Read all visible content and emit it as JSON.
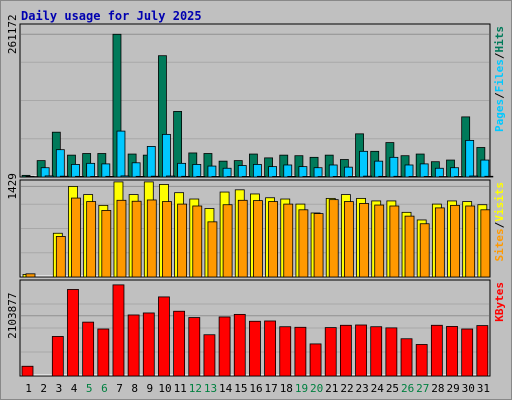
{
  "title": "Daily usage for July 2025",
  "colors": {
    "background": "#c0c0c0",
    "panel_bg": "#c0c0c0",
    "hits": "#007a5a",
    "files": "#00c8ff",
    "pages": "#00c8ff",
    "visits": "#ffff00",
    "sites": "#ff9900",
    "kbytes": "#ff0000",
    "weekend_label": "#008040",
    "axis_text": "#000000",
    "title": "#0000b0"
  },
  "chart_data": [
    {
      "type": "bar",
      "title": "Daily usage for July 2025",
      "panel": "hits_files_pages",
      "categories": [
        "1",
        "2",
        "3",
        "4",
        "5",
        "6",
        "7",
        "8",
        "9",
        "10",
        "11",
        "12",
        "13",
        "14",
        "15",
        "16",
        "17",
        "18",
        "19",
        "20",
        "21",
        "22",
        "23",
        "24",
        "25",
        "26",
        "27",
        "28",
        "29",
        "30",
        "31"
      ],
      "ytick_label": "261172",
      "ytick_value": 261172,
      "ylim": [
        0,
        280000
      ],
      "legend": [
        "Pages",
        "/",
        "Files",
        "/",
        "Hits"
      ],
      "series": [
        {
          "name": "Hits",
          "values": [
            3000,
            30000,
            82000,
            40000,
            43000,
            43000,
            261172,
            42000,
            40000,
            222000,
            120000,
            44000,
            43000,
            29000,
            30000,
            42000,
            35000,
            40000,
            39000,
            36000,
            40000,
            32000,
            79000,
            47000,
            63000,
            39000,
            42000,
            28000,
            31000,
            110000,
            54000
          ]
        },
        {
          "name": "Files",
          "values": [
            1200,
            17000,
            50000,
            23000,
            25000,
            24000,
            84000,
            26000,
            56000,
            78000,
            25000,
            23000,
            20000,
            16000,
            21000,
            23000,
            19000,
            22000,
            19000,
            17000,
            22000,
            18000,
            47000,
            29000,
            36000,
            22000,
            24000,
            16000,
            17000,
            67000,
            31000
          ]
        },
        {
          "name": "Pages",
          "values": [
            800,
            2000,
            1500,
            1200,
            1000,
            1200,
            2000,
            1200,
            1500,
            1800,
            1300,
            1100,
            1000,
            900,
            1000,
            1200,
            1000,
            1100,
            1000,
            900,
            1100,
            900,
            1600,
            1200,
            1300,
            1000,
            1100,
            900,
            1000,
            1800,
            1300
          ]
        }
      ]
    },
    {
      "type": "bar",
      "panel": "visits_sites",
      "categories": [
        "1",
        "2",
        "3",
        "4",
        "5",
        "6",
        "7",
        "8",
        "9",
        "10",
        "11",
        "12",
        "13",
        "14",
        "15",
        "16",
        "17",
        "18",
        "19",
        "20",
        "21",
        "22",
        "23",
        "24",
        "25",
        "26",
        "27",
        "28",
        "29",
        "30",
        "31"
      ],
      "ytick_label": "1429",
      "ytick_value": 1429,
      "ylim": [
        0,
        1530
      ],
      "legend": [
        "Sites",
        "/",
        "Visits"
      ],
      "series": [
        {
          "name": "Visits",
          "values": [
            40,
            0,
            690,
            1429,
            1300,
            1130,
            1500,
            1300,
            1500,
            1460,
            1330,
            1230,
            1080,
            1340,
            1375,
            1310,
            1250,
            1230,
            1150,
            1010,
            1240,
            1300,
            1240,
            1200,
            1200,
            1020,
            900,
            1150,
            1200,
            1190,
            1140
          ]
        },
        {
          "name": "Sites",
          "values": [
            50,
            0,
            640,
            1245,
            1190,
            1050,
            1210,
            1195,
            1215,
            1190,
            1150,
            1120,
            870,
            1140,
            1210,
            1205,
            1190,
            1150,
            1060,
            1000,
            1220,
            1190,
            1160,
            1135,
            1120,
            960,
            840,
            1090,
            1130,
            1120,
            1060
          ]
        }
      ]
    },
    {
      "type": "bar",
      "panel": "kbytes",
      "categories": [
        "1",
        "2",
        "3",
        "4",
        "5",
        "6",
        "7",
        "8",
        "9",
        "10",
        "11",
        "12",
        "13",
        "14",
        "15",
        "16",
        "17",
        "18",
        "19",
        "20",
        "21",
        "22",
        "23",
        "24",
        "25",
        "26",
        "27",
        "28",
        "29",
        "30",
        "31"
      ],
      "ytick_label": "2103877",
      "ytick_value": 2103877,
      "ylim": [
        0,
        3350000
      ],
      "legend": [
        "KBytes"
      ],
      "series": [
        {
          "name": "KBytes",
          "values": [
            340000,
            0,
            1380000,
            3020000,
            1880000,
            1640000,
            3180000,
            2130000,
            2200000,
            2760000,
            2260000,
            2040000,
            1440000,
            2060000,
            2150000,
            1910000,
            1920000,
            1720000,
            1700000,
            1120000,
            1690000,
            1770000,
            1780000,
            1720000,
            1680000,
            1300000,
            1100000,
            1770000,
            1730000,
            1640000,
            1760000
          ]
        }
      ]
    }
  ]
}
